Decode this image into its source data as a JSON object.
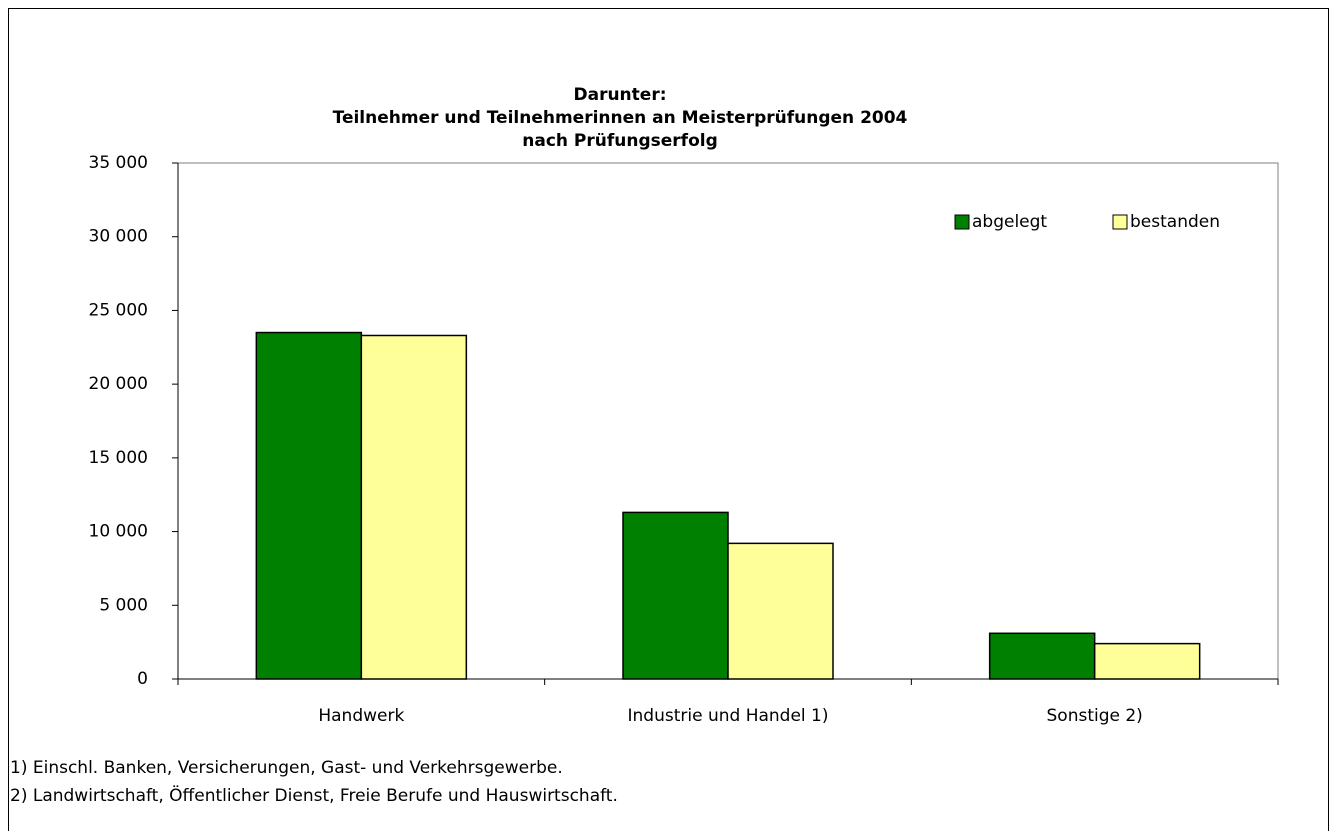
{
  "chart_data": {
    "type": "bar",
    "title": [
      "Darunter:",
      "Teilnehmer und Teilnehmerinnen an Meisterprüfungen 2004",
      "nach Prüfungserfolg"
    ],
    "categories": [
      "Handwerk",
      "Industrie und Handel 1)",
      "Sonstige 2)"
    ],
    "series": [
      {
        "name": "abgelegt",
        "color": "#008000",
        "values": [
          23500,
          11300,
          3100
        ]
      },
      {
        "name": "bestanden",
        "color": "#ffff99",
        "values": [
          23300,
          9200,
          2400
        ]
      }
    ],
    "ylim": [
      0,
      35000
    ],
    "yticks": [
      0,
      {
        "value": 5000,
        "label": "5 000"
      },
      {
        "value": 10000,
        "label": "10 000"
      },
      {
        "value": 15000,
        "label": "15 000"
      },
      {
        "value": 20000,
        "label": "20 000"
      },
      {
        "value": 25000,
        "label": "25 000"
      },
      {
        "value": 30000,
        "label": "30 000"
      },
      {
        "value": 35000,
        "label": "35 000"
      }
    ],
    "grid": false,
    "legend": "top-right",
    "footnotes": [
      "1) Einschl. Banken, Versicherungen, Gast- und Verkehrsgewerbe.",
      "2) Landwirtschaft, Öffentlicher Dienst, Freie Berufe und Hauswirtschaft."
    ]
  }
}
